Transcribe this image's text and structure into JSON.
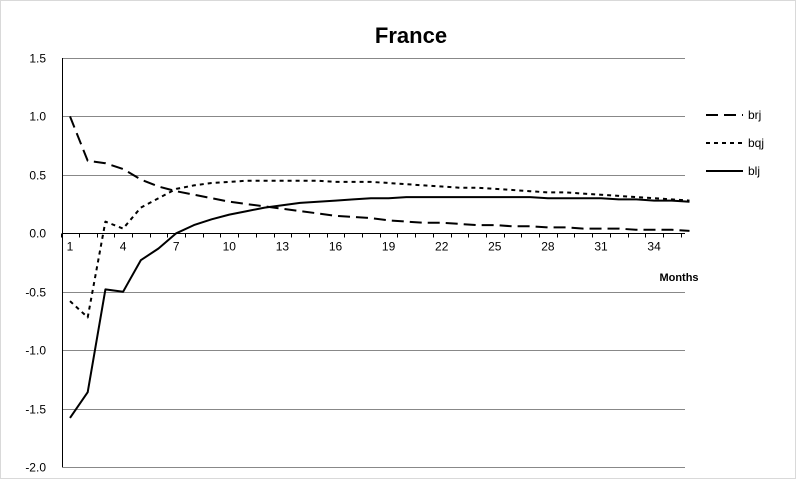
{
  "chart_data": {
    "type": "line",
    "title": "France",
    "xlabel": "Months",
    "ylabel": "",
    "ylim": [
      -2.0,
      1.5
    ],
    "xlim": [
      1,
      36
    ],
    "grid": true,
    "legend_position": "right",
    "y_ticks": [
      "1.5",
      "1.0",
      "0.5",
      "0.0",
      "-0.5",
      "-1.0",
      "-1.5",
      "-2.0"
    ],
    "y_tick_values": [
      1.5,
      1.0,
      0.5,
      0.0,
      -0.5,
      -1.0,
      -1.5,
      -2.0
    ],
    "x_ticks": [
      "1",
      "4",
      "7",
      "10",
      "13",
      "16",
      "19",
      "22",
      "25",
      "28",
      "31",
      "34"
    ],
    "x_tick_values": [
      1,
      4,
      7,
      10,
      13,
      16,
      19,
      22,
      25,
      28,
      31,
      34
    ],
    "x": [
      1,
      2,
      3,
      4,
      5,
      6,
      7,
      8,
      9,
      10,
      11,
      12,
      13,
      14,
      15,
      16,
      17,
      18,
      19,
      20,
      21,
      22,
      23,
      24,
      25,
      26,
      27,
      28,
      29,
      30,
      31,
      32,
      33,
      34,
      35,
      36
    ],
    "series": [
      {
        "name": "brj",
        "dash": "dash",
        "values": [
          1.0,
          0.62,
          0.6,
          0.55,
          0.46,
          0.4,
          0.36,
          0.33,
          0.3,
          0.27,
          0.25,
          0.23,
          0.21,
          0.19,
          0.17,
          0.15,
          0.14,
          0.13,
          0.11,
          0.1,
          0.09,
          0.09,
          0.08,
          0.07,
          0.07,
          0.06,
          0.06,
          0.05,
          0.05,
          0.04,
          0.04,
          0.04,
          0.03,
          0.03,
          0.03,
          0.02
        ]
      },
      {
        "name": "bqj",
        "dash": "dot",
        "values": [
          -0.58,
          -0.72,
          0.1,
          0.04,
          0.22,
          0.3,
          0.38,
          0.41,
          0.43,
          0.44,
          0.45,
          0.45,
          0.45,
          0.45,
          0.45,
          0.44,
          0.44,
          0.44,
          0.43,
          0.42,
          0.41,
          0.4,
          0.39,
          0.39,
          0.38,
          0.37,
          0.36,
          0.35,
          0.35,
          0.34,
          0.33,
          0.32,
          0.31,
          0.3,
          0.29,
          0.28
        ]
      },
      {
        "name": "blj",
        "dash": "solid",
        "values": [
          -1.58,
          -1.36,
          -0.48,
          -0.5,
          -0.23,
          -0.13,
          0.0,
          0.07,
          0.12,
          0.16,
          0.19,
          0.22,
          0.24,
          0.26,
          0.27,
          0.28,
          0.29,
          0.3,
          0.3,
          0.31,
          0.31,
          0.31,
          0.31,
          0.31,
          0.31,
          0.31,
          0.31,
          0.3,
          0.3,
          0.3,
          0.3,
          0.29,
          0.29,
          0.28,
          0.28,
          0.27
        ]
      }
    ],
    "colors": {
      "line": "#000000",
      "grid": "#888888",
      "frame": "#d9d9d9"
    }
  }
}
